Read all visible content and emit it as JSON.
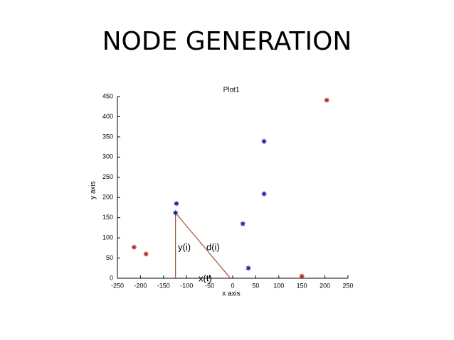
{
  "title": "NODE GENERATION",
  "chart_data": {
    "type": "scatter",
    "title": "Plot1",
    "x_label": "x axis",
    "y_label": "y axis",
    "xlim": [
      -250,
      250
    ],
    "xticks": [
      -250,
      -200,
      -150,
      -100,
      -50,
      0,
      50,
      100,
      150,
      200,
      250
    ],
    "ylim": [
      0,
      450
    ],
    "yticks": [
      0,
      50,
      100,
      150,
      200,
      250,
      300,
      350,
      400,
      450
    ],
    "series": [
      {
        "color": "#b22222",
        "x": [
          -214,
          -188,
          150,
          204
        ],
        "y": [
          77,
          60,
          5,
          441
        ]
      },
      {
        "color": "#1a1a9c",
        "x": [
          -122,
          -124,
          22,
          34,
          68,
          68
        ],
        "y": [
          185,
          162,
          135,
          25,
          209,
          339
        ]
      }
    ],
    "annotation_lines": [
      {
        "color": "#a0522d",
        "x": [
          -124,
          -124
        ],
        "y": [
          162,
          0
        ]
      },
      {
        "color": "#a0522d",
        "x": [
          -124,
          -5
        ],
        "y": [
          162,
          0
        ]
      }
    ],
    "annotations": [
      "y(i)",
      "d(i)",
      "x(t)"
    ]
  }
}
